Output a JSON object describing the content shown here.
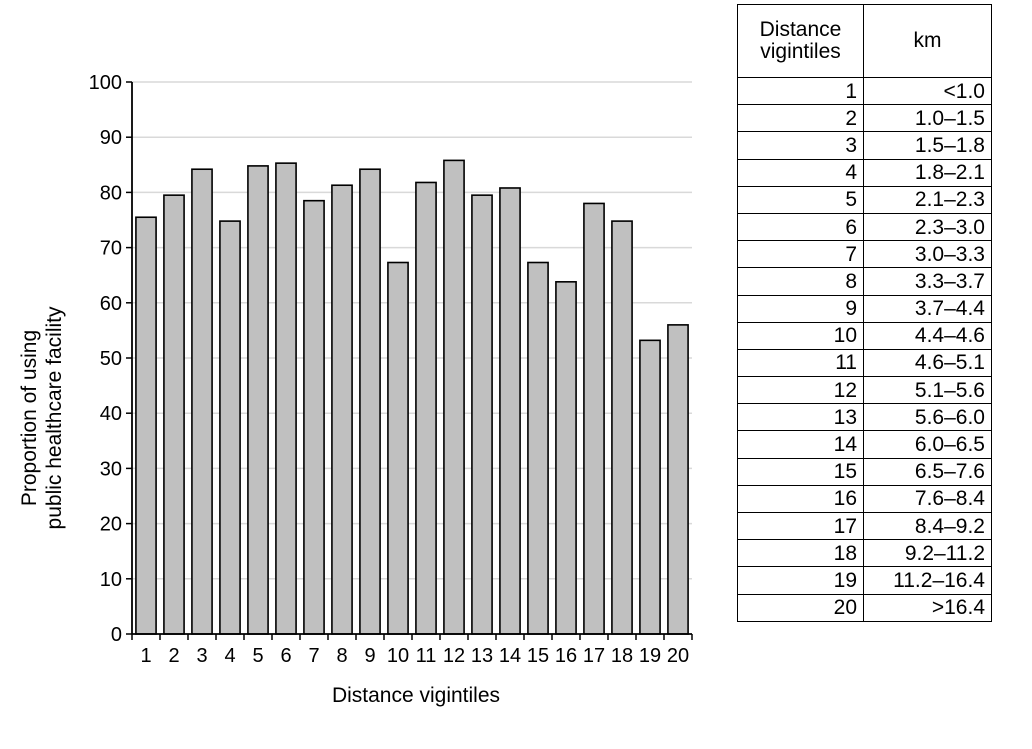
{
  "chart_data": {
    "type": "bar",
    "xlabel": "Distance vigintiles",
    "ylabel_lines": [
      "Proportion of using",
      "public healthcare facility"
    ],
    "ylim": [
      0,
      100
    ],
    "yticks": [
      0,
      10,
      20,
      30,
      40,
      50,
      60,
      70,
      80,
      90,
      100
    ],
    "categories": [
      "1",
      "2",
      "3",
      "4",
      "5",
      "6",
      "7",
      "8",
      "9",
      "10",
      "11",
      "12",
      "13",
      "14",
      "15",
      "16",
      "17",
      "18",
      "19",
      "20"
    ],
    "values": [
      75.5,
      79.5,
      84.2,
      74.8,
      84.8,
      85.3,
      78.5,
      81.3,
      84.2,
      67.3,
      81.8,
      85.8,
      79.5,
      80.8,
      67.3,
      63.8,
      78.0,
      74.8,
      53.2,
      56.0
    ],
    "grid": true,
    "bar_color": "#c0c0c0"
  },
  "table": {
    "header": {
      "col1": "Distance vigintiles",
      "col2": "km"
    },
    "rows": [
      {
        "v": "1",
        "km": "<1.0"
      },
      {
        "v": "2",
        "km": "1.0–1.5"
      },
      {
        "v": "3",
        "km": "1.5–1.8"
      },
      {
        "v": "4",
        "km": "1.8–2.1"
      },
      {
        "v": "5",
        "km": "2.1–2.3"
      },
      {
        "v": "6",
        "km": "2.3–3.0"
      },
      {
        "v": "7",
        "km": "3.0–3.3"
      },
      {
        "v": "8",
        "km": "3.3–3.7"
      },
      {
        "v": "9",
        "km": "3.7–4.4"
      },
      {
        "v": "10",
        "km": "4.4–4.6"
      },
      {
        "v": "11",
        "km": "4.6–5.1"
      },
      {
        "v": "12",
        "km": "5.1–5.6"
      },
      {
        "v": "13",
        "km": "5.6–6.0"
      },
      {
        "v": "14",
        "km": "6.0–6.5"
      },
      {
        "v": "15",
        "km": "6.5–7.6"
      },
      {
        "v": "16",
        "km": "7.6–8.4"
      },
      {
        "v": "17",
        "km": "8.4–9.2"
      },
      {
        "v": "18",
        "km": "9.2–11.2"
      },
      {
        "v": "19",
        "km": "11.2–16.4"
      },
      {
        "v": "20",
        "km": ">16.4"
      }
    ]
  }
}
